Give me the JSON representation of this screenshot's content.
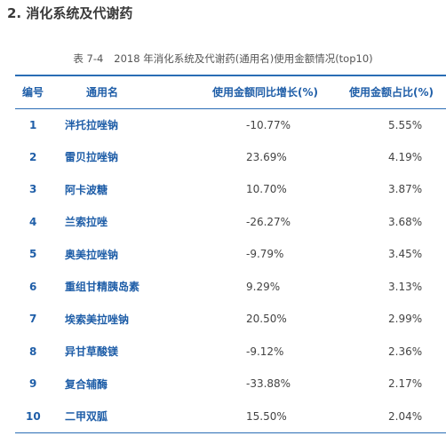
{
  "section": {
    "title": "2. 消化系统及代谢药"
  },
  "table": {
    "caption_number": "表 7-4",
    "caption_text": "2018 年消化系统及代谢药(通用名)使用金额情况(top10)",
    "headers": {
      "rank": "编号",
      "name": "通用名",
      "growth": "使用金额同比增长(%)",
      "share": "使用金额占比(%)"
    },
    "rows": [
      {
        "rank": "1",
        "name": "泮托拉唑钠",
        "growth": "-10.77%",
        "share": "5.55%"
      },
      {
        "rank": "2",
        "name": "雷贝拉唑钠",
        "growth": "23.69%",
        "share": "4.19%"
      },
      {
        "rank": "3",
        "name": "阿卡波糖",
        "growth": "10.70%",
        "share": "3.87%"
      },
      {
        "rank": "4",
        "name": "兰索拉唑",
        "growth": "-26.27%",
        "share": "3.68%"
      },
      {
        "rank": "5",
        "name": "奥美拉唑钠",
        "growth": "-9.79%",
        "share": "3.45%"
      },
      {
        "rank": "6",
        "name": "重组甘精胰岛素",
        "growth": "9.29%",
        "share": "3.13%"
      },
      {
        "rank": "7",
        "name": "埃索美拉唑钠",
        "growth": "20.50%",
        "share": "2.99%"
      },
      {
        "rank": "8",
        "name": "异甘草酸镁",
        "growth": "-9.12%",
        "share": "2.36%"
      },
      {
        "rank": "9",
        "name": "复合辅酶",
        "growth": "-33.88%",
        "share": "2.17%"
      },
      {
        "rank": "10",
        "name": "二甲双胍",
        "growth": "15.50%",
        "share": "2.04%"
      }
    ]
  }
}
